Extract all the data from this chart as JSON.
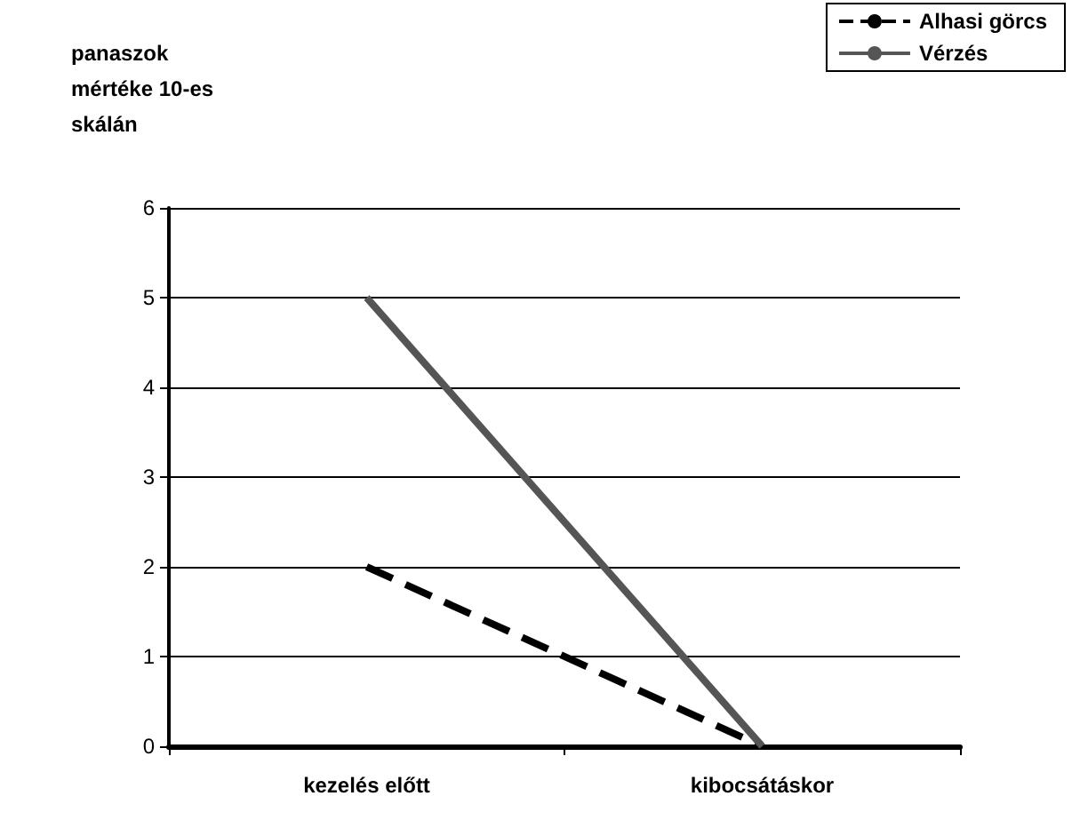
{
  "chart_data": {
    "type": "line",
    "ylabel": "panaszok mértéke 10-es skálán",
    "categories": [
      "kezelés előtt",
      "kibocsátáskor"
    ],
    "series": [
      {
        "name": "Alhasi görcs",
        "color": "#000000",
        "line_style": "dashed",
        "values": [
          2,
          0
        ]
      },
      {
        "name": "Vérzés",
        "color": "#555555",
        "line_style": "solid",
        "values": [
          5,
          0
        ]
      }
    ],
    "ylim": [
      0,
      6
    ],
    "yticks": [
      0,
      1,
      2,
      3,
      4,
      5,
      6
    ],
    "grid": "y",
    "legend": "top right",
    "marker": "none"
  }
}
